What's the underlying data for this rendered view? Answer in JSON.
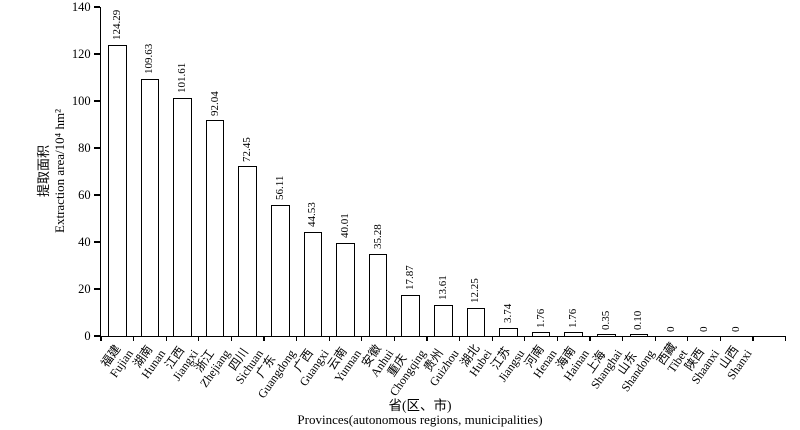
{
  "chart_data": {
    "type": "bar",
    "title": "",
    "x_axis": {
      "label_zh": "省(区、市)",
      "label_en": "Provinces(autonomous regions, municipalities)"
    },
    "y_axis": {
      "label_zh": "提取面积",
      "label_en": "Extraction area/10⁴ hm²",
      "ticks": [
        0,
        20,
        40,
        60,
        80,
        100,
        120,
        140
      ],
      "range": [
        0,
        140
      ]
    },
    "grid": false,
    "legend": "none",
    "bar_style": {
      "fill": "#ffffff",
      "border": "#000000"
    },
    "categories": [
      {
        "zh": "福建",
        "en": "Fujian"
      },
      {
        "zh": "湖南",
        "en": "Hunan"
      },
      {
        "zh": "江西",
        "en": "Jiangxi"
      },
      {
        "zh": "浙江",
        "en": "Zhejiang"
      },
      {
        "zh": "四川",
        "en": "Sichuan"
      },
      {
        "zh": "广东",
        "en": "Guangdong"
      },
      {
        "zh": "广西",
        "en": "Guangxi"
      },
      {
        "zh": "云南",
        "en": "Yunnan"
      },
      {
        "zh": "安徽",
        "en": "Anhui"
      },
      {
        "zh": "重庆",
        "en": "Chongqing"
      },
      {
        "zh": "贵州",
        "en": "Guizhou"
      },
      {
        "zh": "湖北",
        "en": "Hubei"
      },
      {
        "zh": "江苏",
        "en": "Jiangsu"
      },
      {
        "zh": "河南",
        "en": "Henan"
      },
      {
        "zh": "海南",
        "en": "Hainan"
      },
      {
        "zh": "上海",
        "en": "Shanghai"
      },
      {
        "zh": "山东",
        "en": "Shandong"
      },
      {
        "zh": "西藏",
        "en": "Tibet"
      },
      {
        "zh": "陕西",
        "en": "Shaanxi"
      },
      {
        "zh": "山西",
        "en": "Shanxi"
      }
    ],
    "values": [
      124.29,
      109.63,
      101.61,
      92.04,
      72.45,
      56.11,
      44.53,
      40.01,
      35.28,
      17.87,
      13.61,
      12.25,
      3.74,
      1.76,
      1.76,
      0.35,
      0.1,
      0,
      0,
      0
    ],
    "value_labels": [
      "124.29",
      "109.63",
      "101.61",
      "92.04",
      "72.45",
      "56.11",
      "44.53",
      "40.01",
      "35.28",
      "17.87",
      "13.61",
      "12.25",
      "3.74",
      "1.76",
      "1.76",
      "0.35",
      "0.10",
      "0",
      "0",
      "0"
    ]
  }
}
